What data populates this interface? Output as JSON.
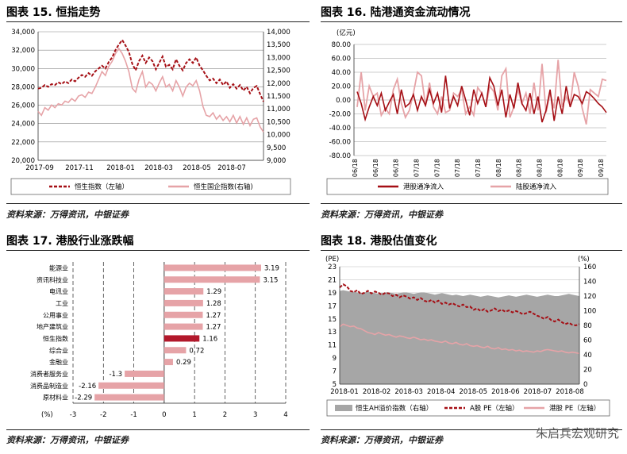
{
  "panels": [
    {
      "title": "图表 15. 恒指走势",
      "source": "资料来源：万得资讯，中银证券"
    },
    {
      "title": "图表 16. 陆港通资金流动情况",
      "source": "资料来源：万得资讯，中银证券"
    },
    {
      "title": "图表 17. 港股行业涨跌幅",
      "source": "资料来源：万得资讯，中银证券"
    },
    {
      "title": "图表 18. 港股估值变化",
      "source": "资料来源：万得资讯，中银证券"
    }
  ],
  "watermark": "朱启兵宏观研究",
  "chart_data": [
    {
      "type": "line",
      "x_ticks": [
        "2017-09",
        "2017-11",
        "2018-01",
        "2018-03",
        "2018-05",
        "2018-07"
      ],
      "y_left_ticks": [
        "20,000",
        "22,000",
        "24,000",
        "26,000",
        "28,000",
        "30,000",
        "32,000",
        "34,000"
      ],
      "y_right_ticks": [
        "9,000",
        "9,500",
        "10,000",
        "10,500",
        "11,000",
        "11,500",
        "12,000",
        "12,500",
        "13,000",
        "13,500",
        "14,000"
      ],
      "ylim_left": [
        20000,
        34000
      ],
      "ylim_right": [
        9000,
        14000
      ],
      "color_main": "#a50f15",
      "color_alt": "#e6a3a7",
      "series": [
        {
          "name": "恒生指数（左轴）",
          "axis": "left",
          "style": "dashed",
          "values": [
            27800,
            27900,
            28200,
            28000,
            28300,
            28200,
            28500,
            28300,
            28600,
            28400,
            28800,
            28600,
            29000,
            29300,
            29100,
            29500,
            29200,
            29700,
            30000,
            30300,
            30000,
            30700,
            31200,
            32000,
            32600,
            33100,
            32500,
            31800,
            30500,
            29800,
            30800,
            31400,
            30600,
            31200,
            30800,
            29900,
            30600,
            31300,
            30200,
            30400,
            29900,
            31000,
            30300,
            29800,
            30600,
            31000,
            30600,
            31200,
            30300,
            29800,
            29200,
            28700,
            28900,
            28400,
            28800,
            28200,
            28600,
            27900,
            28300,
            27800,
            28200,
            27600,
            28000,
            27300,
            27900,
            28100,
            27200,
            26400
          ]
        },
        {
          "name": "恒生国企指数(右轴)",
          "axis": "right",
          "style": "solid",
          "values": [
            10900,
            10750,
            11050,
            10950,
            11150,
            11050,
            11200,
            11150,
            11300,
            11250,
            11400,
            11300,
            11500,
            11550,
            11450,
            11650,
            11600,
            11850,
            12150,
            12450,
            12300,
            12650,
            12850,
            13150,
            13350,
            13150,
            12850,
            12450,
            11800,
            11650,
            12150,
            12450,
            11850,
            12050,
            11950,
            11700,
            12000,
            12250,
            11850,
            11950,
            11700,
            12100,
            11850,
            11500,
            11850,
            12000,
            11900,
            12100,
            11700,
            11100,
            10750,
            10700,
            10850,
            10600,
            10750,
            10550,
            10700,
            10500,
            10750,
            10450,
            10700,
            10400,
            10650,
            10350,
            10600,
            10650,
            10300,
            10100
          ]
        }
      ]
    },
    {
      "type": "line",
      "x_ticks": [
        "06/18",
        "06/18",
        "06/18",
        "07/18",
        "07/18",
        "07/18",
        "07/18",
        "08/18",
        "08/18",
        "08/18",
        "08/18",
        "09/18",
        "09/18"
      ],
      "unit": "(亿元)",
      "y_ticks": [
        "-80.00",
        "-60.00",
        "-40.00",
        "-20.00",
        "0.00",
        "20.00",
        "40.00",
        "60.00",
        "80.00"
      ],
      "ylim": [
        -80,
        80
      ],
      "series": [
        {
          "name": "港股通净流入",
          "color": "#a50f15",
          "values": [
            12,
            -5,
            -28,
            -10,
            5,
            -8,
            10,
            -15,
            -3,
            8,
            -20,
            15,
            -10,
            -5,
            8,
            -15,
            5,
            -8,
            15,
            -5,
            10,
            -18,
            35,
            -12,
            5,
            -8,
            20,
            0,
            -22,
            15,
            -5,
            10,
            -10,
            32,
            20,
            -8,
            15,
            -25,
            8,
            -12,
            25,
            -5,
            -15,
            10,
            -20,
            5,
            -32,
            -15,
            15,
            -30,
            5,
            -20,
            20,
            -10,
            8,
            5,
            -5,
            12,
            8,
            2,
            -5,
            -10,
            -18
          ]
        },
        {
          "name": "陆股通净流入",
          "color": "#e6a3a7",
          "values": [
            -10,
            40,
            -15,
            20,
            5,
            10,
            -22,
            -12,
            -20,
            15,
            30,
            -5,
            -25,
            -15,
            10,
            40,
            35,
            -8,
            25,
            -10,
            -20,
            5,
            -18,
            -15,
            10,
            5,
            15,
            -20,
            -10,
            -22,
            18,
            10,
            -10,
            20,
            12,
            -15,
            35,
            45,
            -25,
            -10,
            15,
            -5,
            10,
            -20,
            25,
            -15,
            52,
            -18,
            10,
            -12,
            58,
            -10,
            5,
            -8,
            40,
            20,
            -12,
            -35,
            15,
            10,
            5,
            30,
            28
          ]
        }
      ]
    },
    {
      "type": "bar",
      "categories": [
        "能源业",
        "资讯科技业",
        "电讯业",
        "工业",
        "公用事业",
        "地产建筑业",
        "恒生指数",
        "综合业",
        "金融业",
        "消费者服务业",
        "消费品制造业",
        "原材料业"
      ],
      "values": [
        3.19,
        3.15,
        1.29,
        1.28,
        1.27,
        1.27,
        1.16,
        0.72,
        0.29,
        -1.3,
        -2.16,
        -2.29
      ],
      "value_labels": [
        "3.19",
        "3.15",
        "1.29",
        "1.28",
        "1.27",
        "1.27",
        "1.16",
        "0.72",
        "0.29",
        "-1.3",
        "-2.16",
        "-2.29"
      ],
      "highlight": "恒生指数",
      "xlabel": "(%)",
      "x_ticks": [
        "-3",
        "-2",
        "-1",
        "0",
        "1",
        "2",
        "3",
        "4"
      ],
      "xlim": [
        -3,
        4
      ],
      "bar_color": "#e6a3a7",
      "highlight_color": "#b2182b"
    },
    {
      "type": "area",
      "x_ticks": [
        "2018-01",
        "2018-02",
        "2018-03",
        "2018-04",
        "2018-05",
        "2018-06",
        "2018-07",
        "2018-08"
      ],
      "y_left_label": "(PE)",
      "y_right_label": "(%)",
      "y_left_ticks": [
        "5",
        "7",
        "9",
        "11",
        "13",
        "15",
        "17",
        "19",
        "21",
        "23"
      ],
      "y_right_ticks": [
        "0",
        "20",
        "40",
        "60",
        "80",
        "100",
        "120",
        "140",
        "160"
      ],
      "ylim_left": [
        5,
        23
      ],
      "ylim_right": [
        0,
        160
      ],
      "series": [
        {
          "name": "恒生AH溢价指数（右轴）",
          "axis": "right",
          "kind": "area",
          "color": "#a6a6a6",
          "values": [
            127,
            128,
            127,
            126,
            126,
            125,
            124,
            125,
            126,
            125,
            124,
            123,
            124,
            125,
            125,
            124,
            123,
            124,
            125,
            125,
            124,
            123,
            124,
            125,
            125,
            124,
            123,
            122,
            123,
            124,
            123,
            122,
            121,
            122,
            121,
            120,
            121,
            122,
            121,
            120,
            119,
            120,
            121,
            120,
            119,
            118,
            119,
            120,
            121,
            120,
            119,
            120,
            121,
            122,
            121,
            120,
            119,
            120,
            121,
            122,
            121,
            120,
            120,
            121,
            122,
            123,
            122,
            121,
            120
          ]
        },
        {
          "name": "A股 PE（左轴）",
          "axis": "left",
          "kind": "dashed",
          "color": "#a50f15",
          "values": [
            19.8,
            20.3,
            20.0,
            19.3,
            19.1,
            19.4,
            18.8,
            19.0,
            19.3,
            18.9,
            19.2,
            19.0,
            18.7,
            19.0,
            18.9,
            18.5,
            18.7,
            18.3,
            18.6,
            18.4,
            18.1,
            18.3,
            17.9,
            18.2,
            17.8,
            17.6,
            17.9,
            17.5,
            17.8,
            17.3,
            17.5,
            17.2,
            17.4,
            17.1,
            16.9,
            17.2,
            16.8,
            16.9,
            16.4,
            16.6,
            16.2,
            16.5,
            16.1,
            16.3,
            16.6,
            16.2,
            16.4,
            16.1,
            16.3,
            16.0,
            16.2,
            16.0,
            15.7,
            15.9,
            16.1,
            15.8,
            15.5,
            15.3,
            15.0,
            15.3,
            14.8,
            14.6,
            14.9,
            14.5,
            14.2,
            14.4,
            14.1,
            14.0,
            14.2
          ]
        },
        {
          "name": "港股 PE（左轴）",
          "axis": "left",
          "kind": "solid",
          "color": "#e6a3a7",
          "values": [
            13.8,
            14.2,
            14.0,
            13.8,
            13.9,
            13.6,
            13.5,
            13.2,
            12.9,
            12.8,
            12.6,
            12.9,
            12.7,
            12.5,
            12.6,
            12.4,
            12.2,
            12.4,
            12.3,
            12.1,
            12.0,
            12.2,
            12.0,
            11.8,
            11.9,
            11.7,
            11.8,
            11.6,
            11.5,
            11.4,
            11.6,
            11.3,
            11.2,
            11.4,
            11.1,
            11.0,
            11.2,
            10.9,
            10.8,
            10.9,
            10.7,
            10.6,
            10.8,
            10.5,
            10.4,
            10.6,
            10.3,
            10.4,
            10.2,
            10.3,
            10.1,
            10.2,
            10.0,
            10.1,
            10.0,
            9.9,
            10.1,
            10.0,
            10.2,
            10.3,
            10.2,
            10.1,
            10.0,
            10.1,
            9.9,
            9.8,
            9.9,
            9.8,
            9.7
          ]
        }
      ]
    }
  ]
}
